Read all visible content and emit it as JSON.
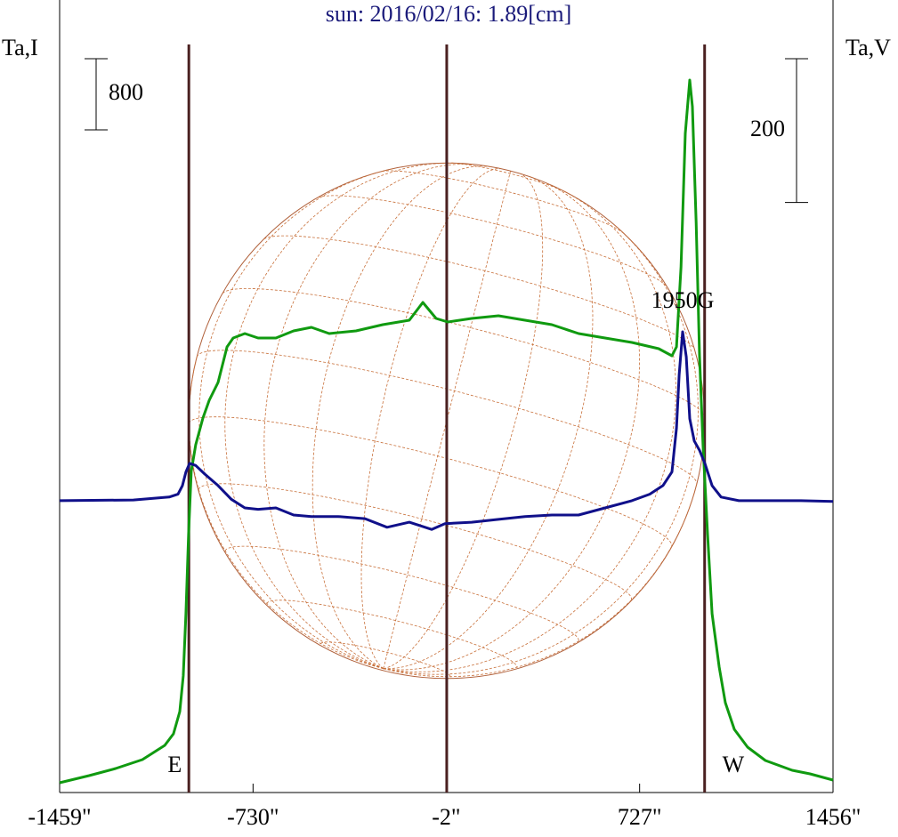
{
  "chart_data": {
    "type": "line",
    "title": "sun: 2016/02/16: 1.89[cm]",
    "ylabel": "Ta,I",
    "y2label": "Ta,V",
    "xlim": [
      -1459,
      1456
    ],
    "xticks": [
      {
        "value": -1459,
        "label": "-1459\""
      },
      {
        "value": -730,
        "label": "-730\""
      },
      {
        "value": -2,
        "label": "-2\""
      },
      {
        "value": 727,
        "label": "727\""
      },
      {
        "value": 1456,
        "label": "1456\""
      }
    ],
    "ylim": [
      0,
      8890
    ],
    "y2lim": [
      -406,
      694
    ],
    "vlines": [
      -972,
      0,
      972
    ],
    "scale_bars": [
      {
        "value": 800,
        "axis": "y"
      },
      {
        "value": 200,
        "axis": "y2"
      }
    ],
    "annotations": [
      {
        "text": "E",
        "x": -1025
      },
      {
        "text": "W",
        "x": 1080
      },
      {
        "text": "1950G",
        "x": 889
      }
    ],
    "series": [
      {
        "color": "#109a10",
        "x": [
          -1459,
          -1348,
          -1248,
          -1147,
          -1063,
          -1030,
          -1006,
          -993,
          -983,
          -973,
          -963,
          -946,
          -919,
          -895,
          -862,
          -828,
          -805,
          -761,
          -711,
          -644,
          -577,
          -510,
          -443,
          -342,
          -241,
          -141,
          -90,
          -40,
          4,
          94,
          195,
          295,
          396,
          497,
          597,
          698,
          799,
          849,
          866,
          883,
          899,
          916,
          926,
          940,
          953,
          966,
          983,
          1000,
          1027,
          1050,
          1084,
          1134,
          1201,
          1302,
          1369,
          1456
        ],
        "values": [
          110,
          190,
          270,
          370,
          530,
          660,
          910,
          1310,
          2010,
          2910,
          3610,
          3910,
          4210,
          4410,
          4610,
          5010,
          5110,
          5160,
          5110,
          5110,
          5190,
          5230,
          5160,
          5190,
          5260,
          5310,
          5510,
          5330,
          5290,
          5330,
          5360,
          5310,
          5260,
          5160,
          5110,
          5060,
          4990,
          4910,
          5010,
          5910,
          7410,
          8010,
          7710,
          6410,
          4910,
          3910,
          2910,
          2010,
          1410,
          1010,
          710,
          510,
          360,
          250,
          210,
          140
        ]
      },
      {
        "color": "#10108a",
        "axis": "y2",
        "x": [
          -1459,
          -1181,
          -1046,
          -1013,
          -996,
          -983,
          -969,
          -946,
          -912,
          -862,
          -812,
          -761,
          -711,
          -644,
          -577,
          -510,
          -409,
          -308,
          -225,
          -141,
          -57,
          -7,
          94,
          195,
          295,
          396,
          497,
          597,
          698,
          765,
          815,
          849,
          866,
          876,
          889,
          903,
          916,
          933,
          953,
          973,
          1000,
          1034,
          1101,
          1335,
          1456
        ],
        "values": [
          0,
          1,
          5,
          9,
          21,
          40,
          52,
          49,
          37,
          21,
          2,
          -10,
          -12,
          -10,
          -20,
          -22,
          -22,
          -25,
          -37,
          -30,
          -40,
          -32,
          -30,
          -26,
          -22,
          -20,
          -20,
          -10,
          0,
          9,
          21,
          40,
          101,
          175,
          235,
          200,
          114,
          83,
          70,
          52,
          21,
          5,
          0,
          0,
          -1
        ]
      }
    ]
  }
}
